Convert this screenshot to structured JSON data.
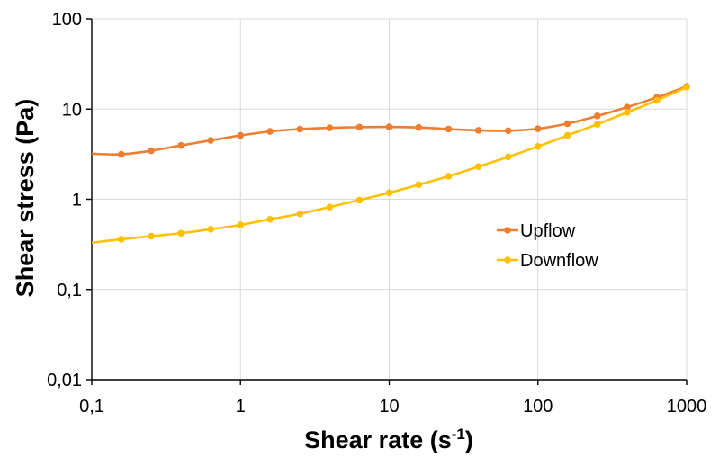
{
  "chart_data": {
    "type": "line",
    "title": "",
    "xlabel": "Shear rate (s",
    "xlabel_sup": "-1",
    "xlabel_suffix": ")",
    "ylabel": "Shear stress (Pa)",
    "xscale": "log",
    "yscale": "log",
    "xlim": [
      0.1,
      1000
    ],
    "ylim": [
      0.01,
      100
    ],
    "x_ticks": [
      0.1,
      1,
      10,
      100,
      1000
    ],
    "x_tick_labels": [
      "0,1",
      "1",
      "10",
      "100",
      "1000"
    ],
    "y_ticks": [
      0.01,
      0.1,
      1,
      10,
      100
    ],
    "y_tick_labels": [
      "0,01",
      "0,1",
      "1",
      "10",
      "100"
    ],
    "grid": true,
    "legend_position": "center-right",
    "series": [
      {
        "name": "Upflow",
        "color": "#ED7D31",
        "x": [
          0.1,
          0.158,
          0.251,
          0.398,
          0.631,
          1,
          1.58,
          2.51,
          3.98,
          6.31,
          10,
          15.8,
          25.1,
          39.8,
          63.1,
          100,
          158,
          251,
          398,
          631,
          1000
        ],
        "y": [
          3.2,
          3.15,
          3.45,
          3.95,
          4.5,
          5.1,
          5.65,
          6.0,
          6.2,
          6.3,
          6.35,
          6.25,
          6.0,
          5.8,
          5.75,
          6.05,
          6.9,
          8.4,
          10.5,
          13.5,
          17.8
        ],
        "markers": [
          false,
          true,
          true,
          true,
          true,
          true,
          true,
          true,
          true,
          true,
          true,
          true,
          true,
          true,
          true,
          true,
          true,
          true,
          true,
          true,
          true
        ]
      },
      {
        "name": "Downflow",
        "color": "#FFC000",
        "x": [
          0.1,
          0.158,
          0.251,
          0.398,
          0.631,
          1,
          1.58,
          2.51,
          3.98,
          6.31,
          10,
          15.8,
          25.1,
          39.8,
          63.1,
          100,
          158,
          251,
          398,
          631,
          1000
        ],
        "y": [
          0.33,
          0.36,
          0.39,
          0.42,
          0.465,
          0.52,
          0.6,
          0.69,
          0.82,
          0.98,
          1.18,
          1.45,
          1.8,
          2.3,
          2.95,
          3.85,
          5.1,
          6.8,
          9.2,
          12.5,
          17.5
        ],
        "markers": [
          false,
          true,
          true,
          true,
          true,
          true,
          true,
          true,
          true,
          true,
          true,
          true,
          true,
          true,
          true,
          true,
          true,
          true,
          true,
          true,
          true
        ]
      }
    ]
  }
}
